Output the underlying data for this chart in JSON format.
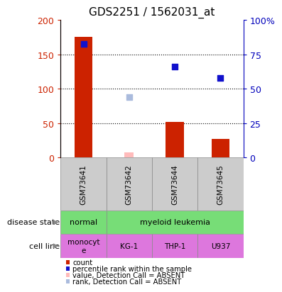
{
  "title": "GDS2251 / 1562031_at",
  "samples": [
    "GSM73641",
    "GSM73642",
    "GSM73644",
    "GSM73645"
  ],
  "bar_values": [
    175,
    0,
    52,
    27
  ],
  "bar_colors_present": [
    "#cc2200",
    "#cc2200",
    "#cc2200",
    "#cc2200"
  ],
  "absent_bar_value": 8,
  "absent_bar_sample_idx": 1,
  "absent_bar_color": "#ffbbbb",
  "dot_values_present": [
    165,
    132,
    116
  ],
  "dot_present_idx": [
    0,
    2,
    3
  ],
  "dot_color_present": "#1111cc",
  "absent_dot_value": 88,
  "absent_dot_sample_idx": 1,
  "absent_dot_color": "#aabbdd",
  "ylim_left": [
    0,
    200
  ],
  "ylim_right": [
    0,
    100
  ],
  "yticks_left": [
    0,
    50,
    100,
    150,
    200
  ],
  "yticks_right": [
    0,
    25,
    50,
    75,
    100
  ],
  "ytick_labels_right": [
    "0",
    "25",
    "50",
    "75",
    "100%"
  ],
  "hlines": [
    50,
    100,
    150
  ],
  "disease_state_color": "#77dd77",
  "cell_line_color": "#dd77dd",
  "sample_label_bg": "#cccccc",
  "legend_items": [
    {
      "color": "#cc2200",
      "label": "count"
    },
    {
      "color": "#1111cc",
      "label": "percentile rank within the sample"
    },
    {
      "color": "#ffbbbb",
      "label": "value, Detection Call = ABSENT"
    },
    {
      "color": "#aabbdd",
      "label": "rank, Detection Call = ABSENT"
    }
  ]
}
